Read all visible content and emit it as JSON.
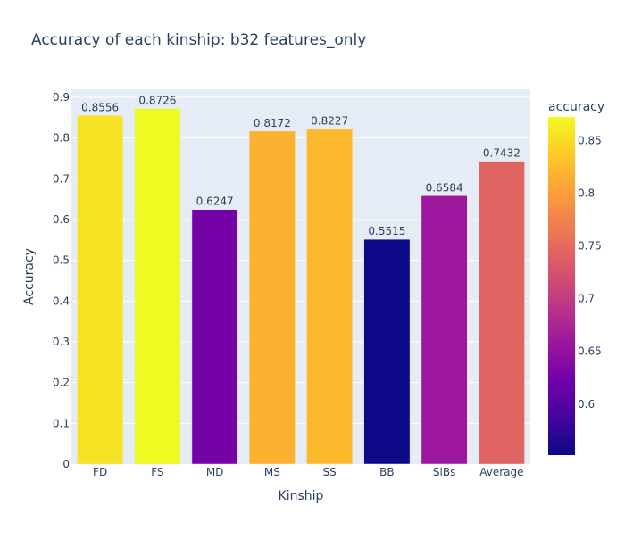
{
  "chart_data": {
    "type": "bar",
    "title": "Accuracy of each kinship: b32 features_only",
    "xlabel": "Kinship",
    "ylabel": "Accuracy",
    "ylim": [
      0,
      0.9
    ],
    "yticks": [
      0,
      0.1,
      0.2,
      0.3,
      0.4,
      0.5,
      0.6,
      0.7,
      0.8,
      0.9
    ],
    "yticklabels": [
      "0",
      "0.1",
      "0.2",
      "0.3",
      "0.4",
      "0.5",
      "0.6",
      "0.7",
      "0.8",
      "0.9"
    ],
    "categories": [
      "FD",
      "FS",
      "MD",
      "MS",
      "SS",
      "BB",
      "SiBs",
      "Average"
    ],
    "values": [
      0.8556,
      0.8726,
      0.6247,
      0.8172,
      0.8227,
      0.5515,
      0.6584,
      0.7432
    ],
    "data_labels": [
      "0.8556",
      "0.8726",
      "0.6247",
      "0.8172",
      "0.8227",
      "0.5515",
      "0.6584",
      "0.7432"
    ],
    "grid": true,
    "plot_background": "#e5ecf6",
    "colorbar": {
      "title": "accuracy",
      "range": [
        0.5515,
        0.8726
      ],
      "ticks": [
        0.6,
        0.65,
        0.7,
        0.75,
        0.8,
        0.85
      ],
      "ticklabels": [
        "0.6",
        "0.65",
        "0.7",
        "0.75",
        "0.8",
        "0.85"
      ],
      "colorscale": [
        "#0d0887",
        "#46039f",
        "#7201a8",
        "#9c179e",
        "#bd3786",
        "#d8576b",
        "#ed7953",
        "#fb9f3a",
        "#fdca26",
        "#f0f921"
      ]
    }
  }
}
